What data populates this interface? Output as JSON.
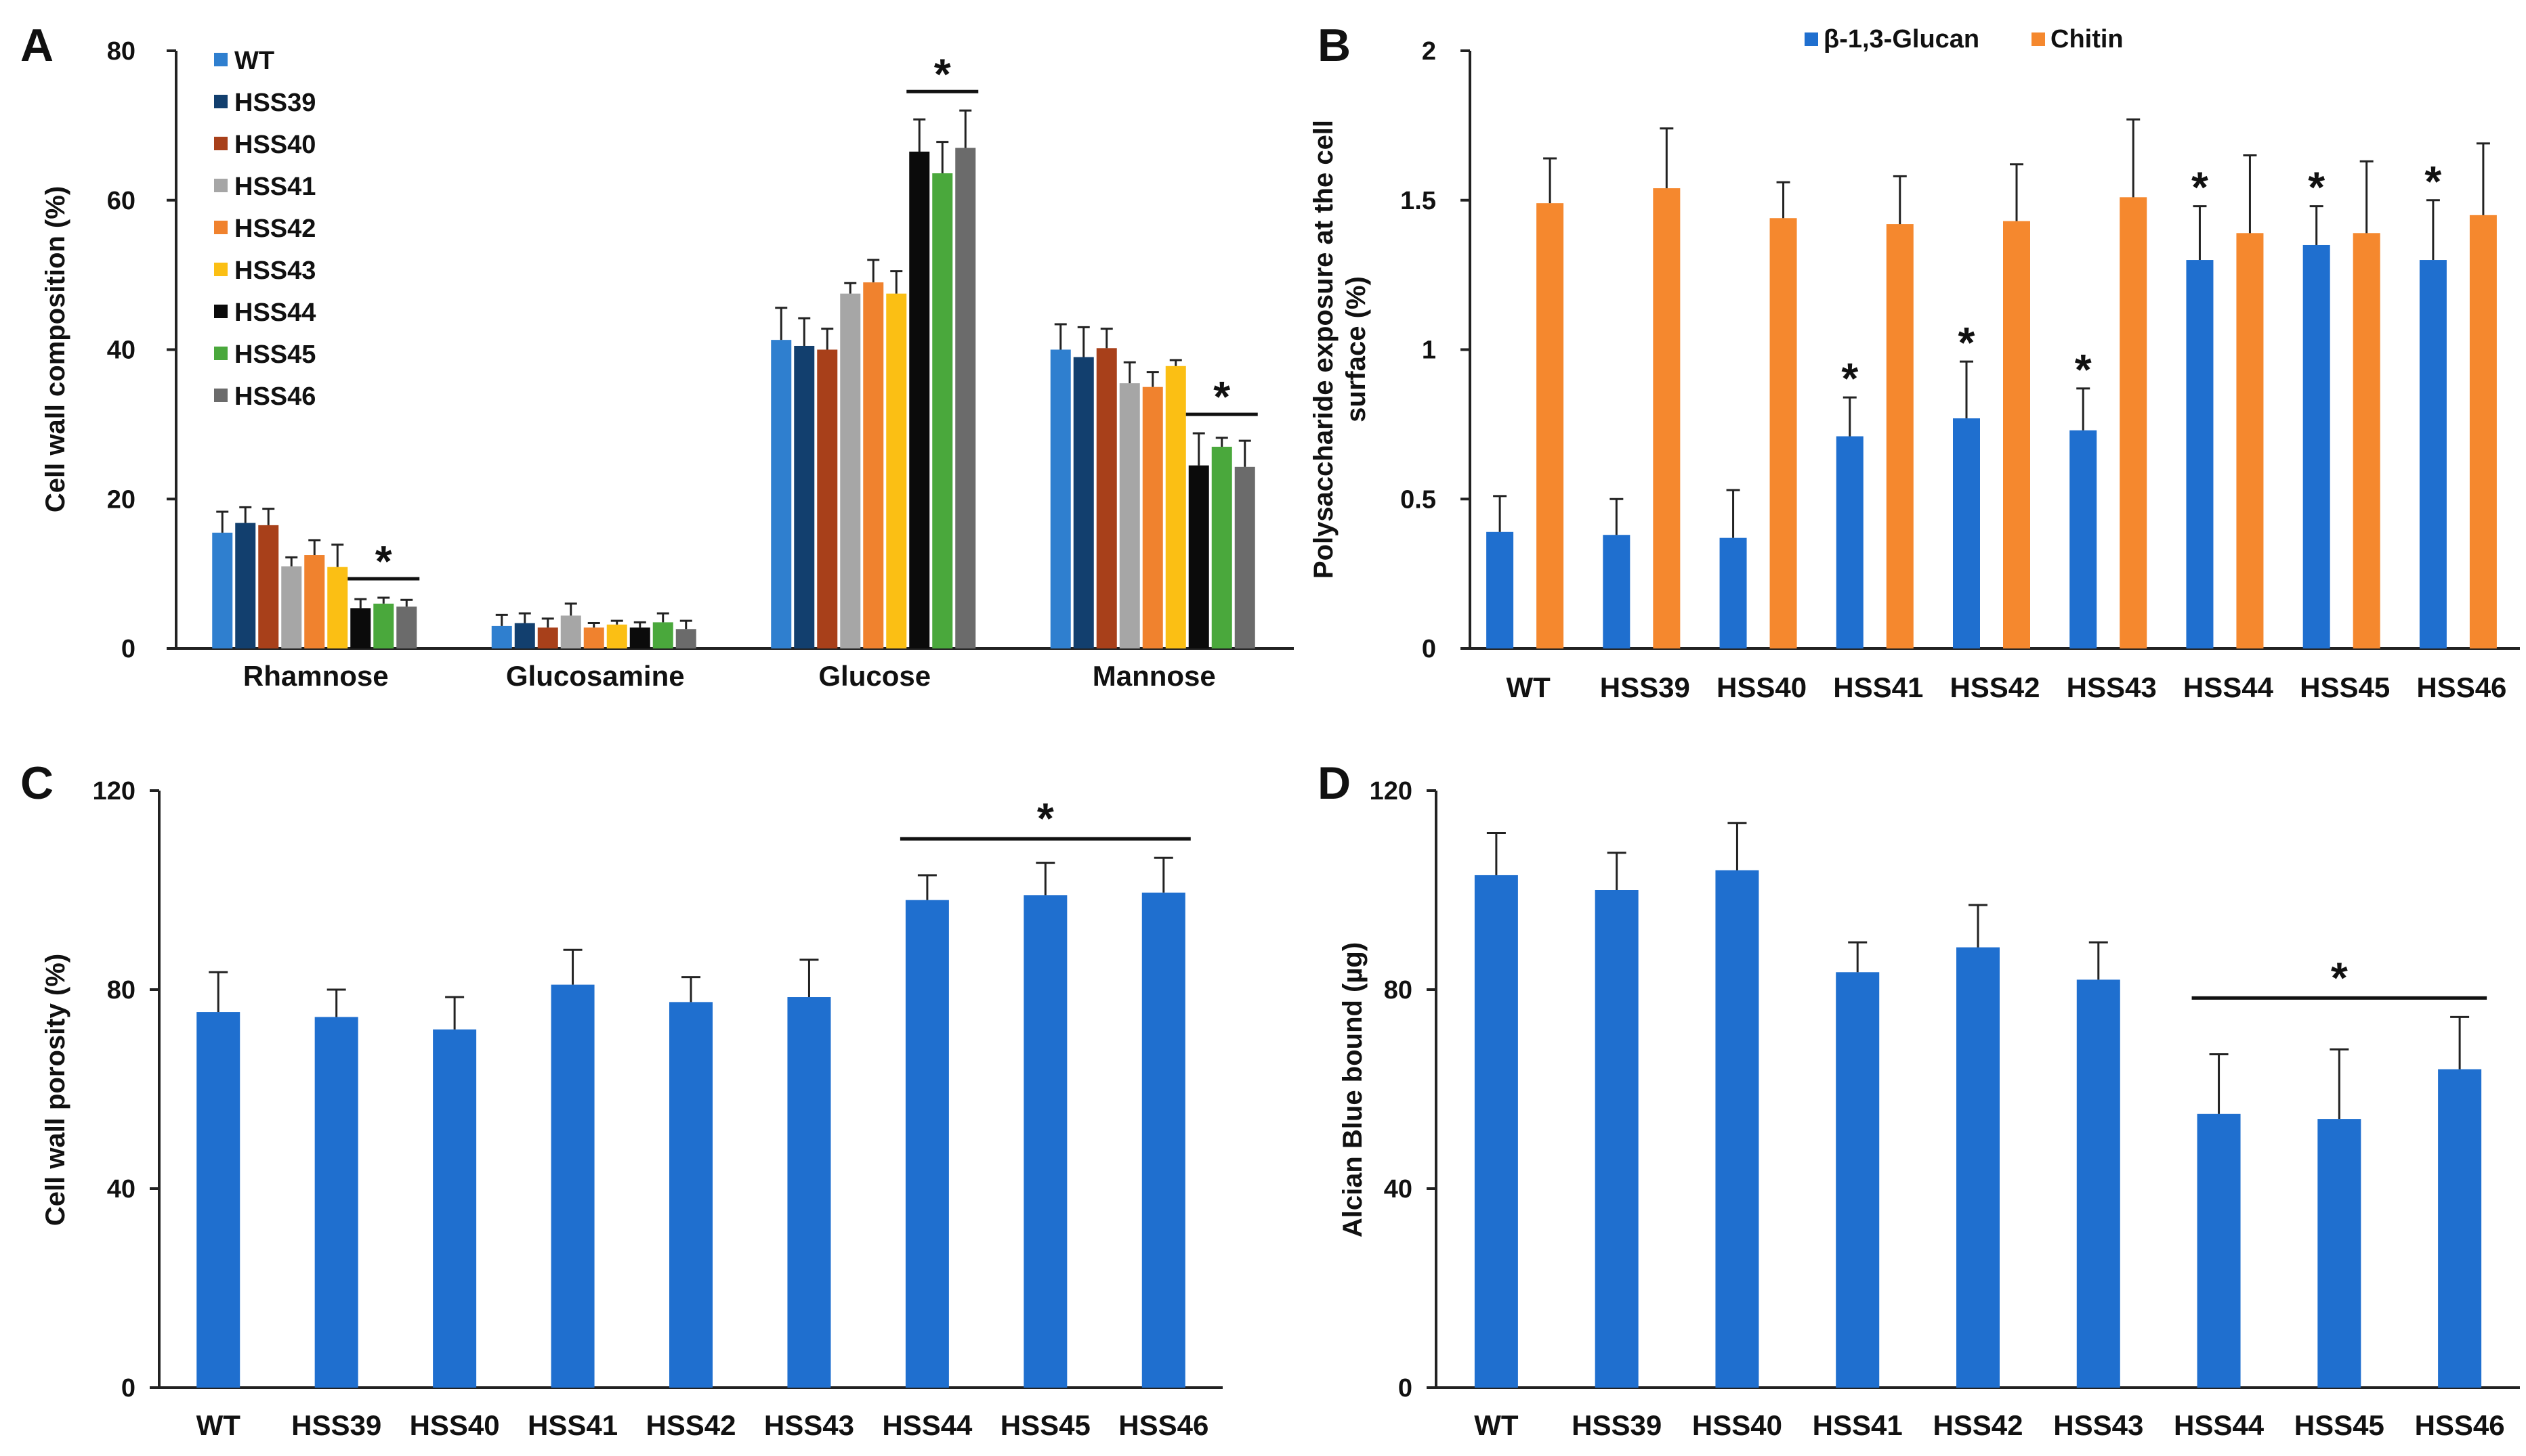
{
  "chart_data": [
    {
      "panel": "A",
      "type": "bar",
      "categories": [
        "Rhamnose",
        "Glucosamine",
        "Glucose",
        "Mannose"
      ],
      "ylabel": "Cell wall composition (%)",
      "ylim": [
        0,
        80
      ],
      "yticks": [
        0,
        20,
        40,
        60,
        80
      ],
      "legend_position": "top-left",
      "series": [
        {
          "name": "WT",
          "color": "#2f7fcf",
          "values": [
            15.5,
            3.0,
            41.3,
            40.0
          ],
          "errors": [
            2.8,
            1.5,
            4.3,
            3.4
          ]
        },
        {
          "name": "HSS39",
          "color": "#123f6e",
          "values": [
            16.8,
            3.4,
            40.5,
            39.0
          ],
          "errors": [
            2.1,
            1.3,
            3.7,
            4.0
          ]
        },
        {
          "name": "HSS40",
          "color": "#a8401a",
          "values": [
            16.5,
            2.8,
            40.0,
            40.2
          ],
          "errors": [
            2.2,
            1.2,
            2.8,
            2.6
          ]
        },
        {
          "name": "HSS41",
          "color": "#a6a6a6",
          "values": [
            11.0,
            4.4,
            47.5,
            35.5
          ],
          "errors": [
            1.2,
            1.6,
            1.4,
            2.8
          ]
        },
        {
          "name": "HSS42",
          "color": "#f0822e",
          "values": [
            12.5,
            2.8,
            49.0,
            35.0
          ],
          "errors": [
            2.0,
            0.6,
            3.0,
            2.0
          ]
        },
        {
          "name": "HSS43",
          "color": "#fbbf14",
          "values": [
            10.9,
            3.2,
            47.5,
            37.8
          ],
          "errors": [
            3.0,
            0.5,
            3.0,
            0.8
          ]
        },
        {
          "name": "HSS44",
          "color": "#0b0b0b",
          "values": [
            5.4,
            2.8,
            66.5,
            24.5
          ],
          "errors": [
            1.2,
            0.7,
            4.3,
            4.3
          ]
        },
        {
          "name": "HSS45",
          "color": "#4aa83c",
          "values": [
            6.0,
            3.5,
            63.6,
            27.0
          ],
          "errors": [
            0.8,
            1.2,
            4.2,
            1.2
          ]
        },
        {
          "name": "HSS46",
          "color": "#6b6b6b",
          "values": [
            5.6,
            2.6,
            67.0,
            24.3
          ],
          "errors": [
            0.9,
            1.1,
            5.0,
            3.5
          ]
        }
      ],
      "significance": [
        {
          "category": "Rhamnose",
          "from_series": "HSS44",
          "to_series": "HSS46",
          "label": "*"
        },
        {
          "category": "Glucose",
          "from_series": "HSS44",
          "to_series": "HSS46",
          "label": "*"
        },
        {
          "category": "Mannose",
          "from_series": "HSS44",
          "to_series": "HSS46",
          "label": "*"
        }
      ]
    },
    {
      "panel": "B",
      "type": "bar",
      "categories": [
        "WT",
        "HSS39",
        "HSS40",
        "HSS41",
        "HSS42",
        "HSS43",
        "HSS44",
        "HSS45",
        "HSS46"
      ],
      "ylabel": "Polysaccharide exposure at the cell surface (%)",
      "ylabel_lines": [
        "Polysaccharide exposure at the cell",
        "surface (%)"
      ],
      "ylim": [
        0,
        2
      ],
      "yticks": [
        0,
        0.5,
        1,
        1.5,
        2
      ],
      "ytick_labels": [
        "0",
        "0.5",
        "1",
        "1.5",
        "2"
      ],
      "legend_position": "top-center",
      "series": [
        {
          "name": "β-1,3-Glucan",
          "color": "#1f6fcf",
          "values": [
            0.39,
            0.38,
            0.37,
            0.71,
            0.77,
            0.73,
            1.3,
            1.35,
            1.3
          ],
          "errors": [
            0.12,
            0.12,
            0.16,
            0.13,
            0.19,
            0.14,
            0.18,
            0.13,
            0.2
          ]
        },
        {
          "name": "Chitin",
          "color": "#f5882e",
          "values": [
            1.49,
            1.54,
            1.44,
            1.42,
            1.43,
            1.51,
            1.39,
            1.39,
            1.45
          ],
          "errors": [
            0.15,
            0.2,
            0.12,
            0.16,
            0.19,
            0.26,
            0.26,
            0.24,
            0.24
          ]
        }
      ],
      "star_over": {
        "series": "β-1,3-Glucan",
        "categories": [
          "HSS41",
          "HSS42",
          "HSS43",
          "HSS44",
          "HSS45",
          "HSS46"
        ],
        "label": "*"
      }
    },
    {
      "panel": "C",
      "type": "bar",
      "categories": [
        "WT",
        "HSS39",
        "HSS40",
        "HSS41",
        "HSS42",
        "HSS43",
        "HSS44",
        "HSS45",
        "HSS46"
      ],
      "ylabel": "Cell wall porosity (%)",
      "ylim": [
        0,
        120
      ],
      "yticks": [
        0,
        40,
        80,
        120
      ],
      "series": [
        {
          "name": "",
          "color": "#1f6fcf",
          "values": [
            75.5,
            74.5,
            72.0,
            81.0,
            77.5,
            78.5,
            98.0,
            99.0,
            99.5
          ],
          "errors": [
            8.0,
            5.5,
            6.5,
            7.0,
            5.0,
            7.5,
            5.0,
            6.5,
            7.0
          ]
        }
      ],
      "significance": [
        {
          "from": "HSS44",
          "to": "HSS46",
          "label": "*"
        }
      ]
    },
    {
      "panel": "D",
      "type": "bar",
      "categories": [
        "WT",
        "HSS39",
        "HSS40",
        "HSS41",
        "HSS42",
        "HSS43",
        "HSS44",
        "HSS45",
        "HSS46"
      ],
      "ylabel": "Alcian Blue bound (µg)",
      "ylim": [
        0,
        120
      ],
      "yticks": [
        0,
        40,
        80,
        120
      ],
      "series": [
        {
          "name": "",
          "color": "#1f6fcf",
          "values": [
            103.0,
            100.0,
            104.0,
            83.5,
            88.5,
            82.0,
            55.0,
            54.0,
            64.0
          ],
          "errors": [
            8.5,
            7.5,
            9.5,
            6.0,
            8.5,
            7.5,
            12.0,
            14.0,
            10.5
          ]
        }
      ],
      "significance": [
        {
          "from": "HSS44",
          "to": "HSS46",
          "label": "*"
        }
      ]
    }
  ]
}
